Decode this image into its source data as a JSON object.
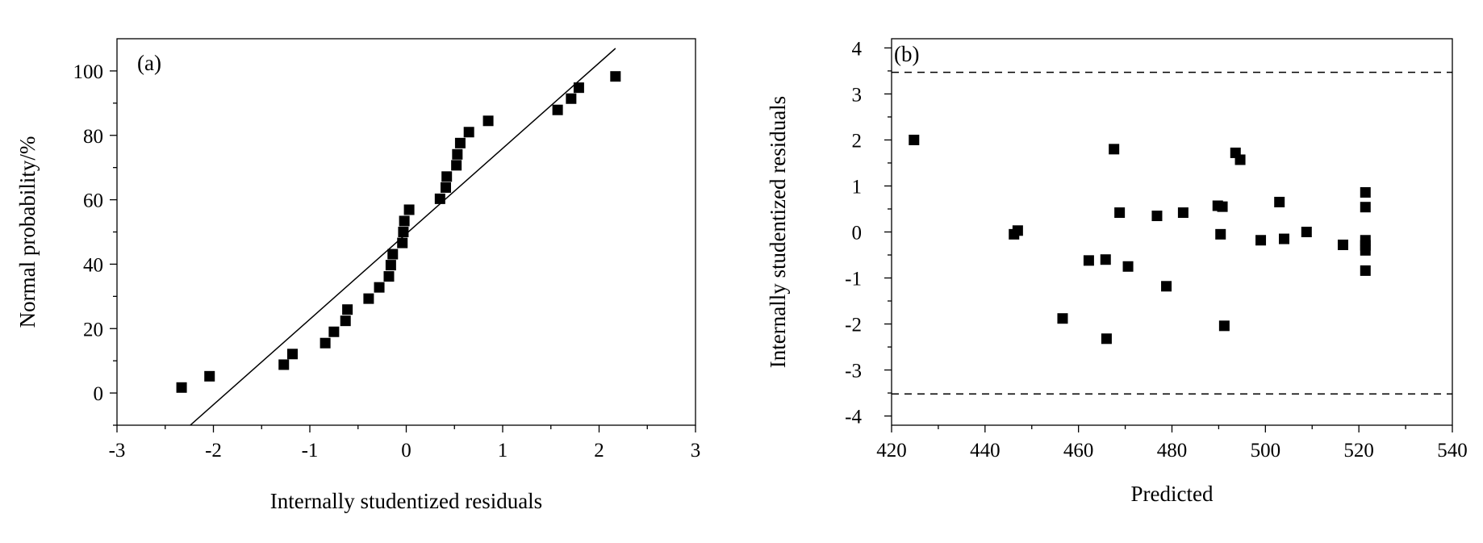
{
  "chart_data": [
    {
      "id": "a",
      "type": "scatter",
      "panel_label": "(a)",
      "title": "",
      "xlabel": "Internally studentized residuals",
      "ylabel": "Normal probability/%",
      "xlim": [
        -3,
        3
      ],
      "ylim": [
        -10,
        110
      ],
      "xticks": [
        -3,
        -2,
        -1,
        0,
        1,
        2,
        3
      ],
      "yticks": [
        0,
        20,
        40,
        60,
        80,
        100
      ],
      "xtick_labels": [
        "-3",
        "-2",
        "-1",
        "0",
        "1",
        "2",
        "3"
      ],
      "ytick_labels": [
        "0",
        "20",
        "40",
        "60",
        "80",
        "100"
      ],
      "grid": false,
      "legend": "none",
      "points": [
        {
          "x": -2.33,
          "y": 1.7
        },
        {
          "x": -2.04,
          "y": 5.2
        },
        {
          "x": -1.27,
          "y": 8.8
        },
        {
          "x": -1.18,
          "y": 12.1
        },
        {
          "x": -0.84,
          "y": 15.5
        },
        {
          "x": -0.75,
          "y": 19.0
        },
        {
          "x": -0.63,
          "y": 22.4
        },
        {
          "x": -0.61,
          "y": 25.9
        },
        {
          "x": -0.39,
          "y": 29.3
        },
        {
          "x": -0.28,
          "y": 32.8
        },
        {
          "x": -0.18,
          "y": 36.2
        },
        {
          "x": -0.16,
          "y": 39.7
        },
        {
          "x": -0.14,
          "y": 43.1
        },
        {
          "x": -0.04,
          "y": 46.6
        },
        {
          "x": -0.03,
          "y": 50.0
        },
        {
          "x": -0.02,
          "y": 53.4
        },
        {
          "x": 0.03,
          "y": 56.9
        },
        {
          "x": 0.35,
          "y": 60.3
        },
        {
          "x": 0.41,
          "y": 63.8
        },
        {
          "x": 0.42,
          "y": 67.2
        },
        {
          "x": 0.52,
          "y": 70.7
        },
        {
          "x": 0.53,
          "y": 74.1
        },
        {
          "x": 0.56,
          "y": 77.6
        },
        {
          "x": 0.65,
          "y": 81.0
        },
        {
          "x": 0.85,
          "y": 84.5
        },
        {
          "x": 1.57,
          "y": 87.9
        },
        {
          "x": 1.71,
          "y": 91.4
        },
        {
          "x": 1.79,
          "y": 94.8
        },
        {
          "x": 2.17,
          "y": 98.3
        }
      ],
      "reference_line": {
        "x1": -2.24,
        "y1": -10,
        "x2": 2.17,
        "y2": 107
      }
    },
    {
      "id": "b",
      "type": "scatter",
      "panel_label": "(b)",
      "title": "",
      "xlabel": "Predicted",
      "ylabel": "Internally studentized residuals",
      "xlim": [
        420,
        540
      ],
      "ylim": [
        -4.2,
        4.2
      ],
      "xticks": [
        420,
        440,
        460,
        480,
        500,
        520,
        540
      ],
      "yticks": [
        -4,
        -3,
        -2,
        -1,
        0,
        1,
        2,
        3,
        4
      ],
      "xtick_labels": [
        "420",
        "440",
        "460",
        "480",
        "500",
        "520",
        "540"
      ],
      "ytick_labels": [
        "-4",
        "-3",
        "-2",
        "-1",
        "0",
        "1",
        "2",
        "3",
        "4"
      ],
      "grid": false,
      "legend": "none",
      "limit_lines": [
        3.47,
        -3.52
      ],
      "points": [
        {
          "x": 424.8,
          "y": 2.0
        },
        {
          "x": 446.2,
          "y": -0.05
        },
        {
          "x": 447.0,
          "y": 0.03
        },
        {
          "x": 456.6,
          "y": -1.88
        },
        {
          "x": 462.2,
          "y": -0.62
        },
        {
          "x": 465.8,
          "y": -0.6
        },
        {
          "x": 466.0,
          "y": -2.32
        },
        {
          "x": 467.6,
          "y": 1.8
        },
        {
          "x": 468.8,
          "y": 0.42
        },
        {
          "x": 470.6,
          "y": -0.75
        },
        {
          "x": 476.8,
          "y": 0.35
        },
        {
          "x": 478.8,
          "y": -1.18
        },
        {
          "x": 482.4,
          "y": 0.42
        },
        {
          "x": 489.8,
          "y": 0.57
        },
        {
          "x": 490.4,
          "y": -0.05
        },
        {
          "x": 490.8,
          "y": 0.55
        },
        {
          "x": 491.2,
          "y": -2.04
        },
        {
          "x": 493.6,
          "y": 1.72
        },
        {
          "x": 494.6,
          "y": 1.57
        },
        {
          "x": 499.0,
          "y": -0.18
        },
        {
          "x": 503.0,
          "y": 0.65
        },
        {
          "x": 504.0,
          "y": -0.15
        },
        {
          "x": 508.8,
          "y": 0.0
        },
        {
          "x": 516.6,
          "y": -0.28
        },
        {
          "x": 521.4,
          "y": 0.86
        },
        {
          "x": 521.4,
          "y": 0.54
        },
        {
          "x": 521.4,
          "y": -0.18
        },
        {
          "x": 521.4,
          "y": -0.29
        },
        {
          "x": 521.4,
          "y": -0.4
        },
        {
          "x": 521.4,
          "y": -0.84
        }
      ]
    }
  ]
}
